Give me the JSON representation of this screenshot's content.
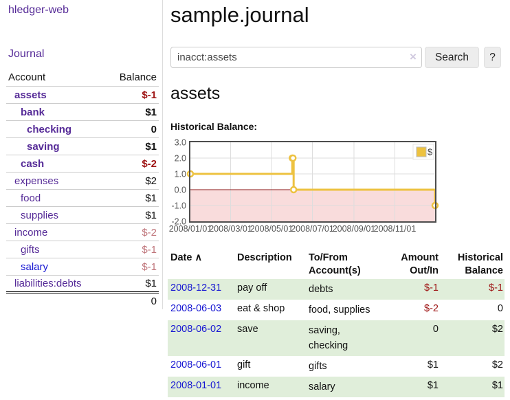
{
  "app": {
    "title": "hledger-web"
  },
  "sidebar": {
    "journal_link": "Journal",
    "table": {
      "account_header": "Account",
      "balance_header": "Balance",
      "accounts": [
        {
          "name": "assets",
          "balance": "$-1",
          "level": 1,
          "bold": true,
          "link_color": "purple"
        },
        {
          "name": "bank",
          "balance": "$1",
          "level": 2,
          "bold": true,
          "link_color": "purple"
        },
        {
          "name": "checking",
          "balance": "0",
          "level": 3,
          "bold": true,
          "link_color": "purple"
        },
        {
          "name": "saving",
          "balance": "$1",
          "level": 3,
          "bold": true,
          "link_color": "purple"
        },
        {
          "name": "cash",
          "balance": "$-2",
          "level": 2,
          "bold": true,
          "link_color": "purple"
        },
        {
          "name": "expenses",
          "balance": "$2",
          "level": 1,
          "bold": false,
          "link_color": "purple"
        },
        {
          "name": "food",
          "balance": "$1",
          "level": 2,
          "bold": false,
          "link_color": "purple"
        },
        {
          "name": "supplies",
          "balance": "$1",
          "level": 2,
          "bold": false,
          "link_color": "purple"
        },
        {
          "name": "income",
          "balance": "$-2",
          "level": 1,
          "bold": false,
          "link_color": "purple"
        },
        {
          "name": "gifts",
          "balance": "$-1",
          "level": 2,
          "bold": false,
          "link_color": "purple"
        },
        {
          "name": "salary",
          "balance": "$-1",
          "level": 2,
          "bold": false,
          "link_color": "blue"
        },
        {
          "name": "liabilities:debts",
          "balance": "$1",
          "level": 1,
          "bold": false,
          "link_color": "purple"
        }
      ],
      "total": "0"
    }
  },
  "header": {
    "title": "sample.journal"
  },
  "search": {
    "value": "inacct:assets",
    "clear_icon": "×",
    "button_label": "Search",
    "help_label": "?"
  },
  "account_page": {
    "heading": "assets",
    "chart_label": "Historical Balance:"
  },
  "chart_data": {
    "type": "line",
    "style": "step",
    "title": "Historical Balance:",
    "series": [
      {
        "name": "$",
        "color": "#edc240",
        "points": [
          {
            "date": "2008-01-01",
            "value": 1
          },
          {
            "date": "2008-06-01",
            "value": 2
          },
          {
            "date": "2008-06-02",
            "value": 2
          },
          {
            "date": "2008-06-03",
            "value": 0
          },
          {
            "date": "2008-12-31",
            "value": -1
          }
        ]
      }
    ],
    "x_range": [
      "2008-01-01",
      "2008-12-31"
    ],
    "ylim": [
      -2,
      3
    ],
    "y_ticks": [
      "3.0",
      "2.0",
      "1.0",
      "0.0",
      "-1.0",
      "-2.0"
    ],
    "x_ticks": [
      {
        "date": "2008-01-01",
        "label": "2008/01/01"
      },
      {
        "date": "2008-03-01",
        "label": "2008/03/01"
      },
      {
        "date": "2008-05-01",
        "label": "2008/05/01"
      },
      {
        "date": "2008-07-01",
        "label": "2008/07/01"
      },
      {
        "date": "2008-09-01",
        "label": "2008/09/01"
      },
      {
        "date": "2008-11-01",
        "label": "2008/11/01"
      }
    ],
    "legend": {
      "label": "$",
      "position": "top-right"
    },
    "grid": true,
    "colors": {
      "negative_region": "#f9dcdc",
      "zero_line": "#8b1a1a",
      "gridline": "#dddddd",
      "plot_border": "#4d4d4d",
      "tick_text": "#545454"
    }
  },
  "transactions": {
    "headers": {
      "date": "Date",
      "sort_icon": "∧",
      "description": "Description",
      "accounts": "To/From Account(s)",
      "amount": "Amount Out/In",
      "balance": "Historical Balance"
    },
    "rows": [
      {
        "date": "2008-12-31",
        "description": "pay off",
        "accounts": "debts",
        "amount": "$-1",
        "balance": "$-1"
      },
      {
        "date": "2008-06-03",
        "description": "eat & shop",
        "accounts": "food, supplies",
        "amount": "$-2",
        "balance": "0"
      },
      {
        "date": "2008-06-02",
        "description": "save",
        "accounts": "saving,\nchecking",
        "amount": "0",
        "balance": "$2"
      },
      {
        "date": "2008-06-01",
        "description": "gift",
        "accounts": "gifts",
        "amount": "$1",
        "balance": "$2"
      },
      {
        "date": "2008-01-01",
        "description": "income",
        "accounts": "salary",
        "amount": "$1",
        "balance": "$1"
      }
    ]
  },
  "colors": {
    "link_purple": "#552a97",
    "link_blue": "#1515d2",
    "negative_strong": "#9e1414",
    "negative_muted": "#c0767c",
    "row_green": "#e0eeda",
    "series_yellow": "#edc240"
  }
}
